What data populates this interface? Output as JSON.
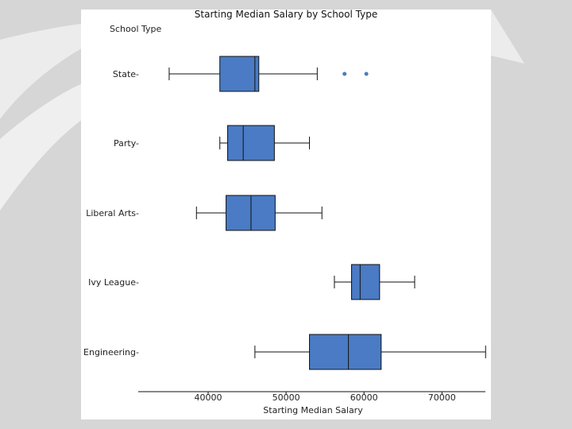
{
  "colors": {
    "box_fill": "#4a7bc4",
    "line": "#111111",
    "background": "#d6d6d6"
  },
  "chart_data": {
    "type": "boxplot",
    "title": "Starting Median Salary by School Type",
    "ylabel": "School Type",
    "xlabel": "Starting Median Salary",
    "xlim": [
      30000,
      77000
    ],
    "xticks": [
      40000,
      50000,
      60000,
      70000
    ],
    "xtick_labels": [
      "40000",
      "50000",
      "60000",
      "70000"
    ],
    "categories": [
      "State-",
      "Party-",
      "Liberal Arts-",
      "Ivy League-",
      "Engineering-"
    ],
    "boxes": [
      {
        "name": "State",
        "whisker_low": 35000,
        "q1": 41500,
        "median": 46000,
        "q3": 46500,
        "whisker_high": 54000,
        "outliers": [
          57500,
          60300
        ]
      },
      {
        "name": "Party",
        "whisker_low": 41500,
        "q1": 42500,
        "median": 44500,
        "q3": 48500,
        "whisker_high": 53000,
        "outliers": []
      },
      {
        "name": "Liberal Arts",
        "whisker_low": 38500,
        "q1": 42300,
        "median": 45500,
        "q3": 48600,
        "whisker_high": 54600,
        "outliers": []
      },
      {
        "name": "Ivy League",
        "whisker_low": 56200,
        "q1": 58400,
        "median": 59500,
        "q3": 62000,
        "whisker_high": 66500,
        "outliers": []
      },
      {
        "name": "Engineering",
        "whisker_low": 46000,
        "q1": 53000,
        "median": 58000,
        "q3": 62200,
        "whisker_high": 75600,
        "outliers": []
      }
    ]
  }
}
